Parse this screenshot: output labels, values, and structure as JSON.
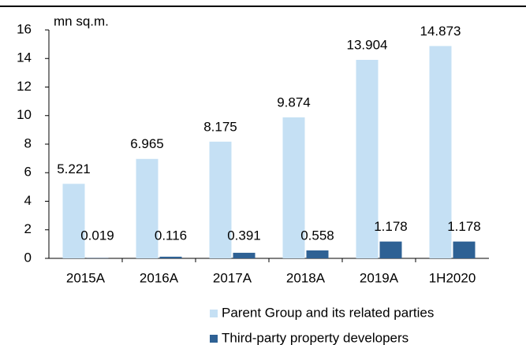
{
  "chart_data": {
    "type": "bar",
    "y_unit": "mn sq.m.",
    "categories": [
      "2015A",
      "2016A",
      "2017A",
      "2018A",
      "2019A",
      "1H2020"
    ],
    "series": [
      {
        "name": "Parent Group and its related parties",
        "color": "#c5e0f4",
        "values": [
          5.221,
          6.965,
          8.175,
          9.874,
          13.904,
          14.873
        ]
      },
      {
        "name": "Third-party property developers",
        "color": "#2e6194",
        "values": [
          0.019,
          0.116,
          0.391,
          0.558,
          1.178,
          1.178
        ]
      }
    ],
    "ylim": [
      0,
      16
    ],
    "yticks": [
      0,
      2,
      4,
      6,
      8,
      10,
      12,
      14,
      16
    ],
    "legend": "bottom"
  }
}
